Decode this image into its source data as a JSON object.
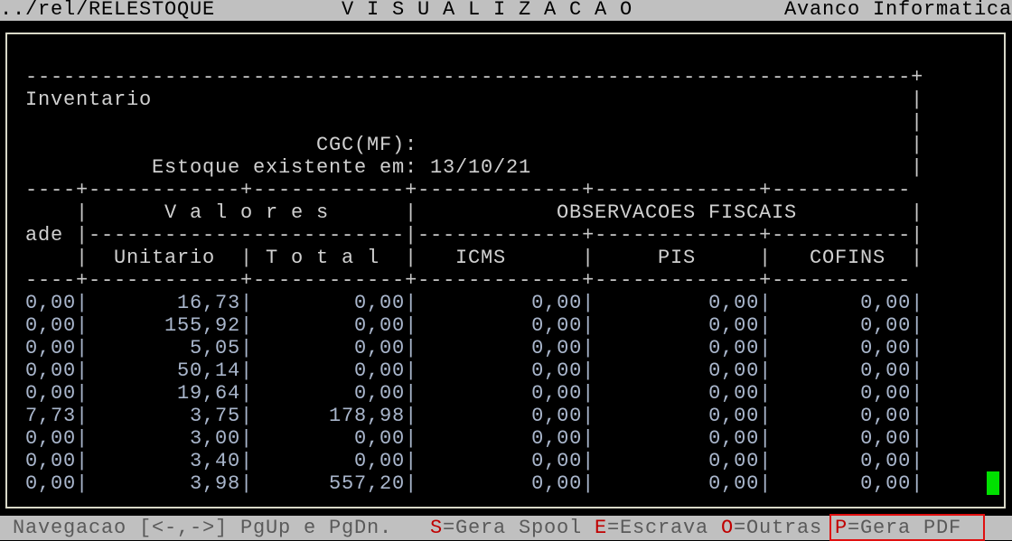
{
  "top_bar": {
    "path": "../rel/RELESTOQUE",
    "mode": "V I S U A L I Z A C A O",
    "company": "Avanco Informatica"
  },
  "report": {
    "title": "Inventario",
    "cgc_label": "CGC(MF):",
    "stock_label": "Estoque existente em:",
    "stock_date": "13/10/21",
    "col_qty_partial": "ade",
    "group_values": "V a l o r e s",
    "group_fiscal": "OBSERVACOES FISCAIS",
    "columns": [
      "Unitario",
      "T o t a l",
      "ICMS",
      "PIS",
      "COFINS"
    ],
    "rows": [
      [
        "0,00",
        "16,73",
        "0,00",
        "0,00",
        "0,00",
        "0,00"
      ],
      [
        "0,00",
        "155,92",
        "0,00",
        "0,00",
        "0,00",
        "0,00"
      ],
      [
        "0,00",
        "5,05",
        "0,00",
        "0,00",
        "0,00",
        "0,00"
      ],
      [
        "0,00",
        "50,14",
        "0,00",
        "0,00",
        "0,00",
        "0,00"
      ],
      [
        "0,00",
        "19,64",
        "0,00",
        "0,00",
        "0,00",
        "0,00"
      ],
      [
        "7,73",
        "3,75",
        "178,98",
        "0,00",
        "0,00",
        "0,00"
      ],
      [
        "0,00",
        "3,00",
        "0,00",
        "0,00",
        "0,00",
        "0,00"
      ],
      [
        "0,00",
        "3,40",
        "0,00",
        "0,00",
        "0,00",
        "0,00"
      ],
      [
        "0,00",
        "3,98",
        "557,20",
        "0,00",
        "0,00",
        "0,00"
      ]
    ]
  },
  "bottom_bar": {
    "navigation": "Navegacao [<-,->] PgUp e PgDn.",
    "spool_key": "S",
    "spool_label": "=Gera Spool",
    "escrava_key": "E",
    "escrava_label": "=Escrava",
    "outras_key": "O",
    "outras_label": "=Outras",
    "pdf_key": "P",
    "pdf_label": "=Gera PDF"
  },
  "colors": {
    "cursor": "#00e000",
    "hotkey": "#c00000",
    "highlight_box": "#e01010"
  }
}
